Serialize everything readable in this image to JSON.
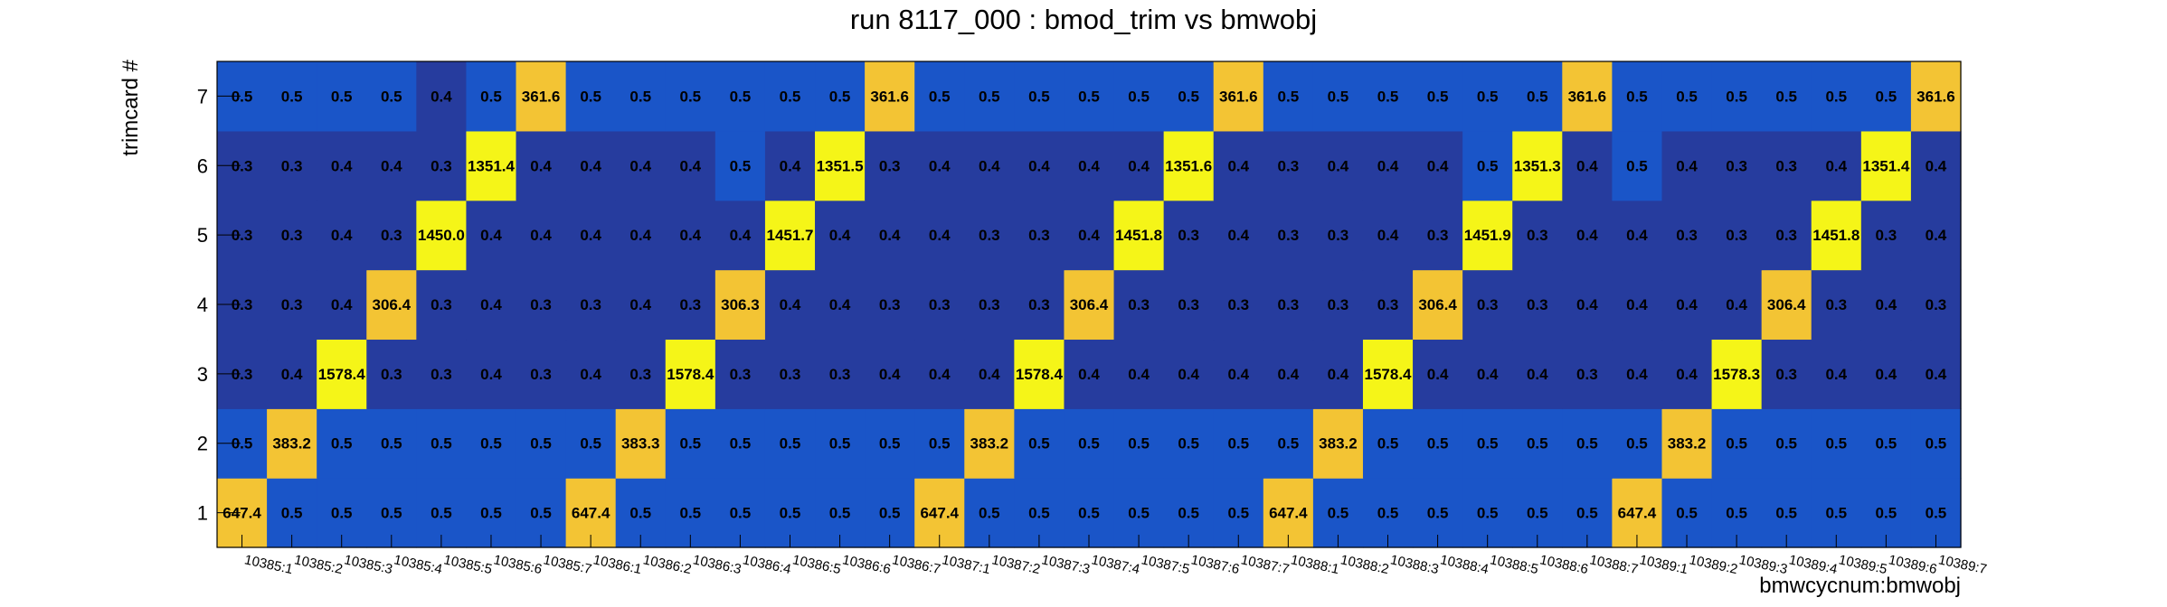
{
  "chart_data": {
    "type": "heatmap",
    "title": "run 8117_000 : bmod_trim vs bmwobj",
    "xlabel": "bmwcycnum:bmwobj",
    "ylabel": "trimcard #",
    "y_categories": [
      "1",
      "2",
      "3",
      "4",
      "5",
      "6",
      "7"
    ],
    "x_categories": [
      "10385:1",
      "10385:2",
      "10385:3",
      "10385:4",
      "10385:5",
      "10385:6",
      "10385:7",
      "10386:1",
      "10386:2",
      "10386:3",
      "10386:4",
      "10386:5",
      "10386:6",
      "10386:7",
      "10387:1",
      "10387:2",
      "10387:3",
      "10387:4",
      "10387:5",
      "10387:6",
      "10387:7",
      "10388:1",
      "10388:2",
      "10388:3",
      "10388:4",
      "10388:5",
      "10388:6",
      "10388:7",
      "10389:1",
      "10389:2",
      "10389:3",
      "10389:4",
      "10389:5",
      "10389:6",
      "10389:7"
    ],
    "rows": [
      {
        "trimcard": "1",
        "values": [
          647.4,
          0.5,
          0.5,
          0.5,
          0.5,
          0.5,
          0.5,
          647.4,
          0.5,
          0.5,
          0.5,
          0.5,
          0.5,
          0.5,
          647.4,
          0.5,
          0.5,
          0.5,
          0.5,
          0.5,
          0.5,
          647.4,
          0.5,
          0.5,
          0.5,
          0.5,
          0.5,
          0.5,
          647.4,
          0.5,
          0.5,
          0.5,
          0.5,
          0.5,
          0.5
        ]
      },
      {
        "trimcard": "2",
        "values": [
          0.5,
          383.2,
          0.5,
          0.5,
          0.5,
          0.5,
          0.5,
          0.5,
          383.3,
          0.5,
          0.5,
          0.5,
          0.5,
          0.5,
          0.5,
          383.2,
          0.5,
          0.5,
          0.5,
          0.5,
          0.5,
          0.5,
          383.2,
          0.5,
          0.5,
          0.5,
          0.5,
          0.5,
          0.5,
          383.2,
          0.5,
          0.5,
          0.5,
          0.5,
          0.5
        ]
      },
      {
        "trimcard": "3",
        "values": [
          0.3,
          0.4,
          1578.4,
          0.3,
          0.3,
          0.4,
          0.3,
          0.4,
          0.3,
          1578.4,
          0.3,
          0.3,
          0.3,
          0.4,
          0.4,
          0.4,
          1578.4,
          0.4,
          0.4,
          0.4,
          0.4,
          0.4,
          0.4,
          1578.4,
          0.4,
          0.4,
          0.4,
          0.3,
          0.4,
          0.4,
          1578.3,
          0.3,
          0.4,
          0.4,
          0.4
        ]
      },
      {
        "trimcard": "4",
        "values": [
          0.3,
          0.3,
          0.4,
          306.4,
          0.3,
          0.4,
          0.3,
          0.3,
          0.4,
          0.3,
          306.3,
          0.4,
          0.4,
          0.3,
          0.3,
          0.3,
          0.3,
          306.4,
          0.3,
          0.3,
          0.3,
          0.3,
          0.3,
          0.3,
          306.4,
          0.3,
          0.3,
          0.4,
          0.4,
          0.4,
          0.4,
          306.4,
          0.3,
          0.4,
          0.3
        ]
      },
      {
        "trimcard": "5",
        "values": [
          0.3,
          0.3,
          0.4,
          0.3,
          1450.0,
          0.4,
          0.4,
          0.4,
          0.4,
          0.4,
          0.4,
          1451.7,
          0.4,
          0.4,
          0.4,
          0.3,
          0.3,
          0.4,
          1451.8,
          0.3,
          0.4,
          0.3,
          0.3,
          0.4,
          0.3,
          1451.9,
          0.3,
          0.4,
          0.4,
          0.3,
          0.3,
          0.3,
          1451.8,
          0.3,
          0.4
        ]
      },
      {
        "trimcard": "6",
        "values": [
          0.3,
          0.3,
          0.4,
          0.4,
          0.3,
          1351.4,
          0.4,
          0.4,
          0.4,
          0.4,
          0.5,
          0.4,
          1351.5,
          0.3,
          0.4,
          0.4,
          0.4,
          0.4,
          0.4,
          1351.6,
          0.4,
          0.3,
          0.4,
          0.4,
          0.4,
          0.5,
          1351.3,
          0.4,
          0.5,
          0.4,
          0.3,
          0.3,
          0.4,
          1351.4,
          0.4
        ]
      },
      {
        "trimcard": "7",
        "values": [
          0.5,
          0.5,
          0.5,
          0.5,
          0.4,
          0.5,
          361.6,
          0.5,
          0.5,
          0.5,
          0.5,
          0.5,
          0.5,
          361.6,
          0.5,
          0.5,
          0.5,
          0.5,
          0.5,
          0.5,
          361.6,
          0.5,
          0.5,
          0.5,
          0.5,
          0.5,
          0.5,
          361.6,
          0.5,
          0.5,
          0.5,
          0.5,
          0.5,
          0.5,
          361.6
        ]
      }
    ],
    "colors": {
      "low_dark": "#263c9e",
      "low_mid": "#1a55c8",
      "mid_high": "#f3c434",
      "high": "#f5f518"
    },
    "grid": false
  }
}
